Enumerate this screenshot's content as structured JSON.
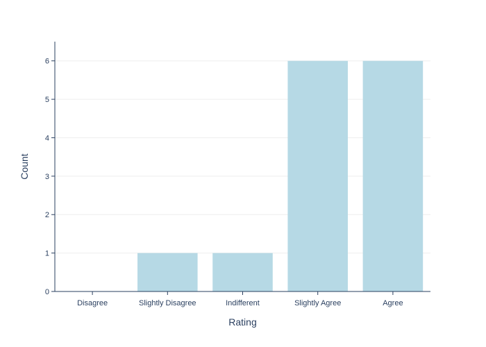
{
  "chart_data": {
    "type": "bar",
    "title": "",
    "xlabel": "Rating",
    "ylabel": "Count",
    "categories": [
      "Disagree",
      "Slightly Disagree",
      "Indifferent",
      "Slightly Agree",
      "Agree"
    ],
    "values": [
      0,
      1,
      1,
      6,
      6
    ],
    "ylim": [
      0,
      6.5
    ],
    "yticks": [
      0,
      1,
      2,
      3,
      4,
      5,
      6
    ],
    "grid": true,
    "legend": false,
    "colors": {
      "bar": "#b6d9e5",
      "axis": "#2a3f5f",
      "grid": "#eeeeee",
      "text": "#2a3f5f"
    }
  }
}
